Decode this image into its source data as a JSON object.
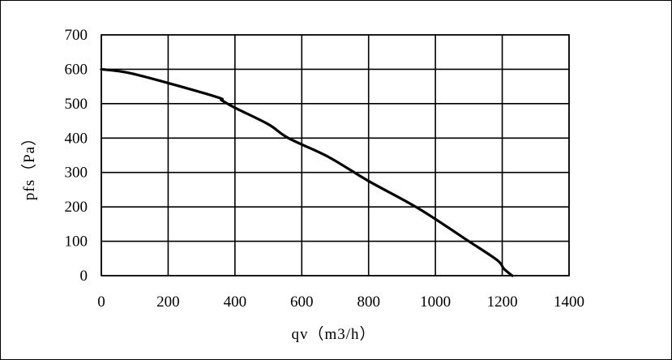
{
  "chart_data": {
    "type": "line",
    "title": "",
    "xlabel": "qv（m3/h）",
    "ylabel": "pfs（Pa）",
    "xlim": [
      0,
      1400
    ],
    "ylim": [
      0,
      700
    ],
    "xticks": [
      0,
      200,
      400,
      600,
      800,
      1000,
      1200,
      1400
    ],
    "yticks": [
      0,
      100,
      200,
      300,
      400,
      500,
      600,
      700
    ],
    "grid": true,
    "legend": "none",
    "line_color": "#000000",
    "series": [
      {
        "x": [
          0,
          80,
          200,
          350,
          360,
          400,
          500,
          560,
          680,
          800,
          950,
          1100,
          1185,
          1205,
          1230
        ],
        "y": [
          600,
          590,
          560,
          518,
          510,
          488,
          440,
          400,
          345,
          275,
          195,
          100,
          45,
          20,
          0
        ]
      }
    ]
  }
}
